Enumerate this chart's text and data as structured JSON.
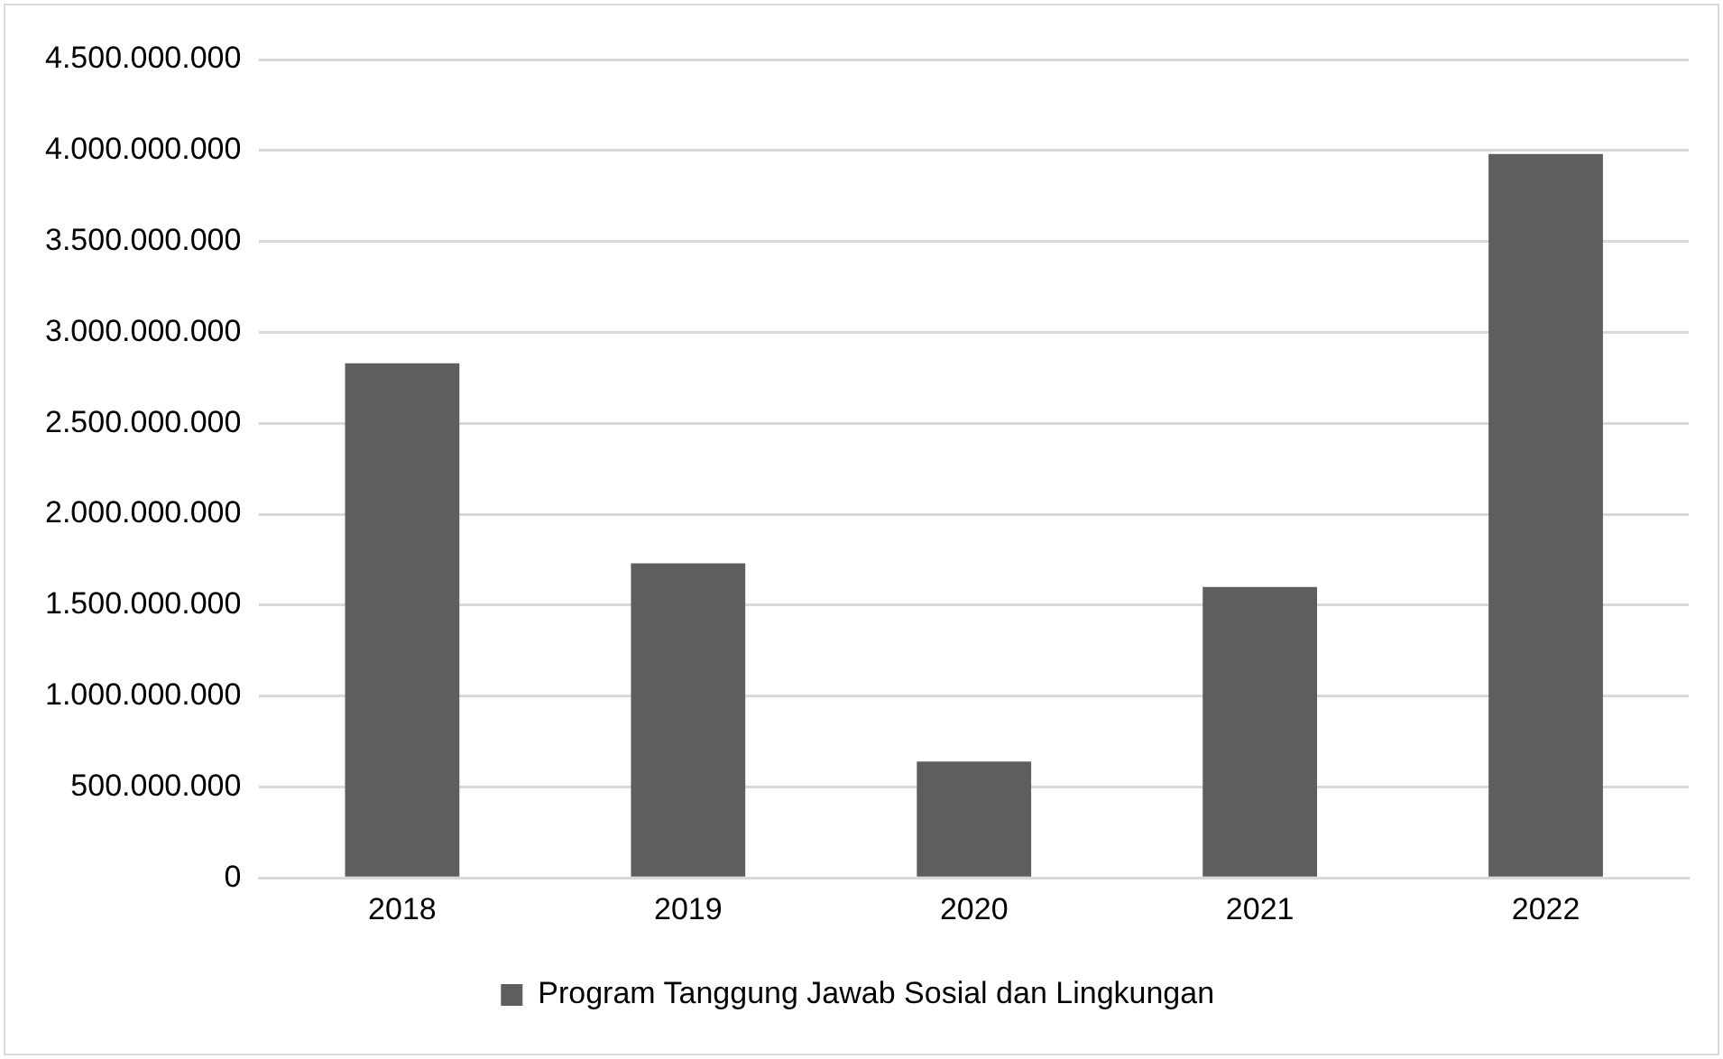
{
  "chart_data": {
    "type": "bar",
    "categories": [
      "2018",
      "2019",
      "2020",
      "2021",
      "2022"
    ],
    "series": [
      {
        "name": "Program Tanggung Jawab Sosial dan Lingkungan",
        "color": "#5e5e5e",
        "values": [
          2830000000,
          1730000000,
          640000000,
          1600000000,
          3980000000
        ]
      }
    ],
    "ylim": [
      0,
      4500000000
    ],
    "yticks": [
      {
        "value": 0,
        "label": "0"
      },
      {
        "value": 500000000,
        "label": "500.000.000"
      },
      {
        "value": 1000000000,
        "label": "1.000.000.000"
      },
      {
        "value": 1500000000,
        "label": "1.500.000.000"
      },
      {
        "value": 2000000000,
        "label": "2.000.000.000"
      },
      {
        "value": 2500000000,
        "label": "2.500.000.000"
      },
      {
        "value": 3000000000,
        "label": "3.000.000.000"
      },
      {
        "value": 3500000000,
        "label": "3.500.000.000"
      },
      {
        "value": 4000000000,
        "label": "4.000.000.000"
      },
      {
        "value": 4500000000,
        "label": "4.500.000.000"
      }
    ],
    "grid": "y",
    "legend": "bottom"
  }
}
